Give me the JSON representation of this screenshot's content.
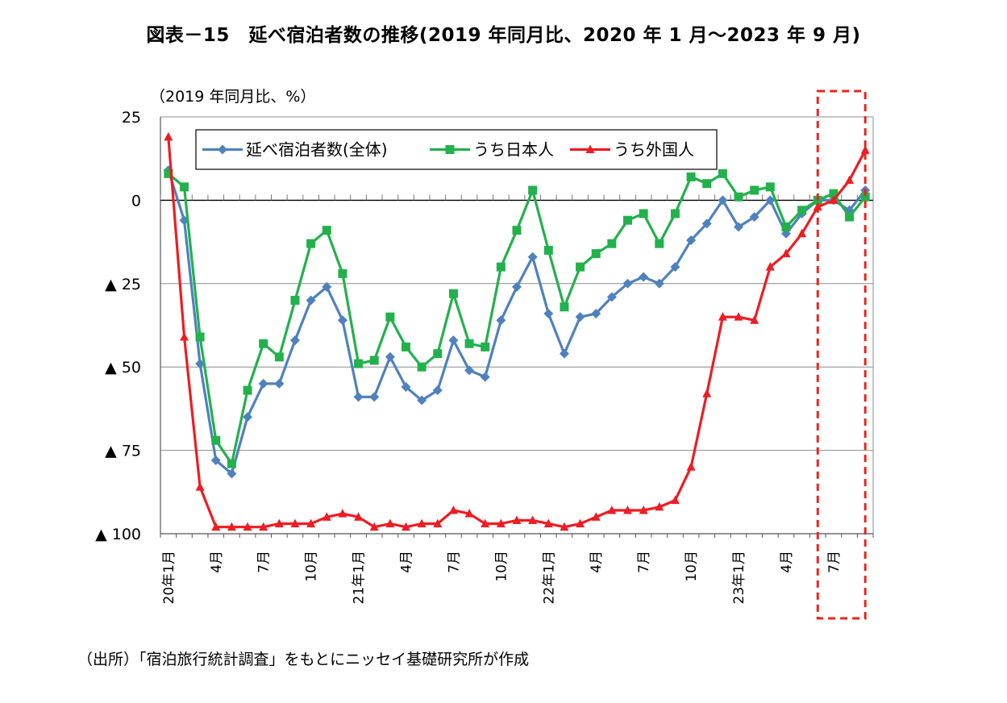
{
  "title": "図表－15　延べ宿泊者数の推移(2019 年同月比、2020 年 1 月～2023 年 9 月)",
  "unit_label": "（2019 年同月比、%）",
  "source_note": "（出所）「宿泊旅行統計調査」をもとにニッセイ基礎研究所が作成",
  "chart_data": {
    "type": "line",
    "ylim": [
      -100,
      25
    ],
    "y_ticks": [
      25,
      0,
      -25,
      -50,
      -75,
      -100
    ],
    "y_tick_labels": [
      "25",
      "0",
      "▲ 25",
      "▲ 50",
      "▲ 75",
      "▲ 100"
    ],
    "grid": true,
    "legend_position": "top-left",
    "x_count": 45,
    "x_tick_labels": [
      {
        "i": 0,
        "label": "20年1月"
      },
      {
        "i": 3,
        "label": "4月"
      },
      {
        "i": 6,
        "label": "7月"
      },
      {
        "i": 9,
        "label": "10月"
      },
      {
        "i": 12,
        "label": "21年1月"
      },
      {
        "i": 15,
        "label": "4月"
      },
      {
        "i": 18,
        "label": "7月"
      },
      {
        "i": 21,
        "label": "10月"
      },
      {
        "i": 24,
        "label": "22年1月"
      },
      {
        "i": 27,
        "label": "4月"
      },
      {
        "i": 30,
        "label": "7月"
      },
      {
        "i": 33,
        "label": "10月"
      },
      {
        "i": 36,
        "label": "23年1月"
      },
      {
        "i": 39,
        "label": "4月"
      },
      {
        "i": 42,
        "label": "7月"
      }
    ],
    "highlight": {
      "from": 41.5,
      "to": 44.5,
      "color": "#e8251f"
    },
    "series": [
      {
        "name": "延べ宿泊者数(全体)",
        "color": "#4f81bd",
        "marker": "diamond",
        "values": [
          9,
          -6,
          -49,
          -78,
          -82,
          -65,
          -55,
          -55,
          -42,
          -30,
          -26,
          -36,
          -59,
          -59,
          -47,
          -56,
          -60,
          -57,
          -42,
          -51,
          -53,
          -36,
          -26,
          -17,
          -34,
          -46,
          -35,
          -34,
          -29,
          -25,
          -23,
          -25,
          -20,
          -12,
          -7,
          0,
          -8,
          -5,
          0,
          -10,
          -4,
          0,
          0,
          -3,
          3
        ]
      },
      {
        "name": "うち日本人",
        "color": "#22b14c",
        "marker": "square",
        "values": [
          8,
          4,
          -41,
          -72,
          -79,
          -57,
          -43,
          -47,
          -30,
          -13,
          -9,
          -22,
          -49,
          -48,
          -35,
          -44,
          -50,
          -46,
          -28,
          -43,
          -44,
          -20,
          -9,
          3,
          -15,
          -32,
          -20,
          -16,
          -13,
          -6,
          -4,
          -13,
          -4,
          7,
          5,
          8,
          1,
          3,
          4,
          -8,
          -3,
          0,
          2,
          -5,
          1
        ]
      },
      {
        "name": "うち外国人",
        "color": "#ee1c23",
        "marker": "triangle",
        "values": [
          19,
          -41,
          -86,
          -98,
          -98,
          -98,
          -98,
          -97,
          -97,
          -97,
          -95,
          -94,
          -95,
          -98,
          -97,
          -98,
          -97,
          -97,
          -93,
          -94,
          -97,
          -97,
          -96,
          -96,
          -97,
          -98,
          -97,
          -95,
          -93,
          -93,
          -93,
          -92,
          -90,
          -80,
          -58,
          -35,
          -35,
          -36,
          -20,
          -16,
          -10,
          -2,
          0,
          6,
          15
        ]
      }
    ]
  }
}
